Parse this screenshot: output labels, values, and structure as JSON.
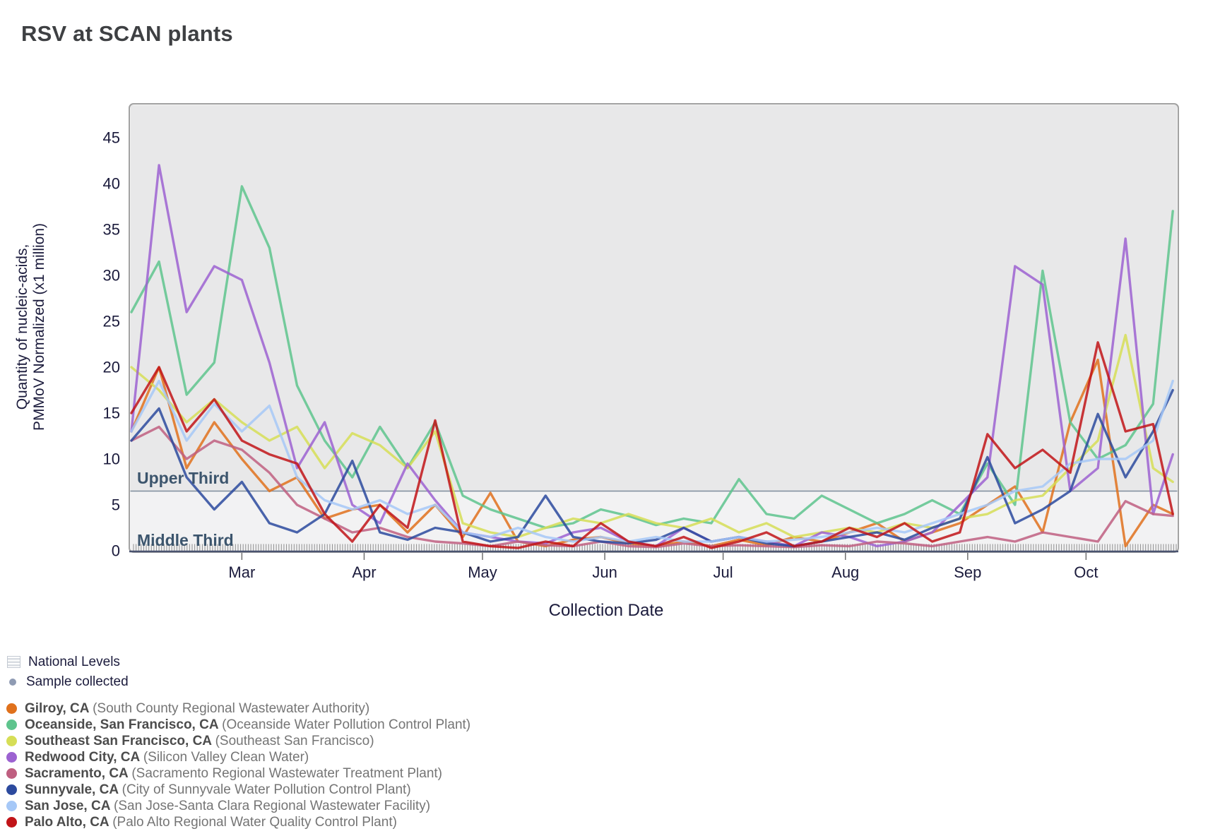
{
  "title": "RSV at SCAN plants",
  "legend": {
    "national_levels": "National Levels",
    "sample_collected": "Sample collected",
    "plants": [
      {
        "city": "Gilroy, CA",
        "plant": "(South County Regional Wastewater Authority)",
        "color": "#e0711c"
      },
      {
        "city": "Oceanside, San Francisco, CA",
        "plant": "(Oceanside Water Pollution Control Plant)",
        "color": "#5ec48d"
      },
      {
        "city": "Southeast San Francisco, CA",
        "plant": "(Southeast San Francisco)",
        "color": "#d6de56"
      },
      {
        "city": "Redwood City, CA",
        "plant": "(Silicon Valley Clean Water)",
        "color": "#9c62d1"
      },
      {
        "city": "Sacramento, CA",
        "plant": "(Sacramento Regional Wastewater Treatment Plant)",
        "color": "#bf5f80"
      },
      {
        "city": "Sunnyvale, CA",
        "plant": "(City of Sunnyvale Water Pollution Control Plant)",
        "color": "#2c4a9e"
      },
      {
        "city": "San Jose, CA",
        "plant": "(San Jose-Santa Clara Regional Wastewater Facility)",
        "color": "#a6c8f7"
      },
      {
        "city": "Palo Alto, CA",
        "plant": "(Palo Alto Regional Water Quality Control Plant)",
        "color": "#c11418"
      }
    ]
  },
  "chart_data": {
    "type": "line",
    "title": "RSV at SCAN plants",
    "xlabel": "Collection Date",
    "ylabel_line1": "Quantity of nucleic-acids,",
    "ylabel_line2": "PMMoV Normalized (x1 million)",
    "ylim": [
      0,
      48
    ],
    "yticks": [
      0,
      5,
      10,
      15,
      20,
      25,
      30,
      35,
      40,
      45
    ],
    "x_domain": {
      "start": "Feb 1",
      "end": "Oct 23",
      "total_days": 264
    },
    "x_months": [
      {
        "label": "Mar",
        "day": 28
      },
      {
        "label": "Apr",
        "day": 59
      },
      {
        "label": "May",
        "day": 89
      },
      {
        "label": "Jun",
        "day": 120
      },
      {
        "label": "Jul",
        "day": 150
      },
      {
        "label": "Aug",
        "day": 181
      },
      {
        "label": "Sep",
        "day": 212
      },
      {
        "label": "Oct",
        "day": 242
      }
    ],
    "grid": false,
    "legend_position": "bottom-left",
    "national_bands": {
      "threshold_value": 6.5,
      "upper_label": "Upper Third",
      "middle_label": "Middle Third",
      "upper_fill": "#e8e8e9",
      "middle_fill": "#f2f2f3",
      "line_color": "#7e8c9c",
      "label_color": "#3c556d"
    },
    "sample_marks": {
      "label": "Sample collected",
      "count": 410,
      "color": "#8f8f8f"
    },
    "dates": [
      "Feb 01",
      "Feb 08",
      "Feb 15",
      "Feb 22",
      "Mar 01",
      "Mar 08",
      "Mar 15",
      "Mar 22",
      "Mar 29",
      "Apr 05",
      "Apr 12",
      "Apr 19",
      "Apr 26",
      "May 03",
      "May 10",
      "May 17",
      "May 24",
      "May 31",
      "Jun 07",
      "Jun 14",
      "Jun 21",
      "Jun 28",
      "Jul 05",
      "Jul 12",
      "Jul 19",
      "Jul 26",
      "Aug 02",
      "Aug 09",
      "Aug 16",
      "Aug 23",
      "Aug 30",
      "Sep 06",
      "Sep 13",
      "Sep 20",
      "Sep 27",
      "Oct 04",
      "Oct 11",
      "Oct 18",
      "Oct 23"
    ],
    "days": [
      0,
      7,
      14,
      21,
      28,
      35,
      42,
      49,
      56,
      63,
      70,
      77,
      84,
      91,
      98,
      105,
      112,
      119,
      126,
      133,
      140,
      147,
      154,
      161,
      168,
      175,
      182,
      189,
      196,
      203,
      210,
      217,
      224,
      231,
      238,
      245,
      252,
      259,
      264
    ],
    "series": [
      {
        "name": "Gilroy, CA",
        "color": "#e0711c",
        "values": [
          13,
          20,
          9,
          14,
          10,
          6.5,
          8,
          3.5,
          4.5,
          5,
          2,
          5,
          1.5,
          6.3,
          1,
          0.5,
          1.2,
          1.5,
          0.8,
          0.5,
          1,
          0.5,
          1.2,
          0.6,
          1.5,
          1,
          2,
          3,
          1,
          2,
          3,
          5,
          7,
          2,
          14,
          20.8,
          0.5,
          5,
          4
        ]
      },
      {
        "name": "Oceanside, San Francisco, CA",
        "color": "#5ec48d",
        "values": [
          26,
          31.5,
          17,
          20.5,
          39.7,
          33,
          18,
          12,
          8,
          13.5,
          9,
          14,
          6,
          4.5,
          3.5,
          2.5,
          3,
          4.5,
          3.8,
          2.8,
          3.5,
          3,
          7.8,
          4,
          3.5,
          6,
          4.5,
          3,
          4,
          5.5,
          4,
          9.5,
          5,
          30.5,
          14,
          10,
          11.5,
          16,
          37
        ]
      },
      {
        "name": "Southeast San Francisco, CA",
        "color": "#d6de56",
        "values": [
          20,
          17.5,
          14,
          16.5,
          14,
          12,
          13.5,
          9,
          12.8,
          11.5,
          9,
          13,
          3,
          2,
          1.5,
          2.5,
          3.5,
          3,
          4,
          3,
          2.5,
          3.5,
          2,
          3,
          1.5,
          2,
          2.5,
          2,
          3,
          2.5,
          3.5,
          4,
          5.5,
          6,
          9,
          12,
          23.5,
          9,
          7.5
        ]
      },
      {
        "name": "Redwood City, CA",
        "color": "#9c62d1",
        "values": [
          13,
          42,
          26,
          31,
          29.5,
          20.5,
          9,
          14,
          5,
          3,
          9.5,
          5.5,
          2,
          1.5,
          1,
          0.8,
          2,
          2.5,
          1,
          0.5,
          2.5,
          1,
          1.5,
          1,
          0.5,
          2,
          1.5,
          0.5,
          1,
          2,
          5,
          8,
          31,
          29,
          6.5,
          9,
          34,
          4,
          10.5
        ]
      },
      {
        "name": "Sacramento, CA",
        "color": "#bf5f80",
        "values": [
          12,
          13.5,
          10,
          12,
          11,
          8.5,
          5,
          3.5,
          2,
          2.5,
          1.5,
          1,
          0.8,
          0.5,
          1,
          0.6,
          0.5,
          1,
          0.5,
          0.4,
          0.8,
          0.5,
          0.6,
          0.5,
          0.4,
          0.6,
          0.5,
          1,
          0.8,
          0.5,
          1,
          1.5,
          1,
          2,
          1.5,
          1,
          5.4,
          4,
          3.8
        ]
      },
      {
        "name": "Sunnyvale, CA",
        "color": "#2c4a9e",
        "values": [
          12,
          15.5,
          8,
          4.5,
          7.5,
          3,
          2,
          4,
          9.8,
          2,
          1.2,
          2.5,
          2,
          1,
          1.5,
          6,
          1.5,
          1,
          0.8,
          1.2,
          2.5,
          1,
          1.5,
          0.8,
          0.5,
          1,
          1.5,
          2,
          1.2,
          2.5,
          3.5,
          10.2,
          3,
          4.5,
          6.5,
          14.9,
          8,
          13,
          17.5
        ]
      },
      {
        "name": "San Jose, CA",
        "color": "#a6c8f7",
        "values": [
          13,
          18.5,
          12,
          16,
          13,
          15.8,
          8,
          5.5,
          4.5,
          5.5,
          4,
          5,
          2,
          1.5,
          2.5,
          1.5,
          1,
          1.5,
          1,
          1.5,
          1,
          1,
          1.5,
          1,
          1.2,
          1.5,
          2,
          2.5,
          2,
          3,
          4,
          5,
          6.5,
          7,
          9.5,
          10,
          10,
          12,
          18.5
        ]
      },
      {
        "name": "Palo Alto, CA",
        "color": "#c11418",
        "values": [
          15,
          20,
          13,
          16.5,
          12,
          10.5,
          9.5,
          4,
          1,
          5,
          2.5,
          14.2,
          1,
          0.5,
          0.3,
          1,
          0.5,
          3,
          1,
          0.5,
          1.5,
          0.3,
          1,
          2,
          0.5,
          1,
          2.5,
          1.5,
          3,
          1,
          2,
          12.7,
          9,
          11,
          8.5,
          22.7,
          13,
          13.8,
          4
        ]
      }
    ]
  }
}
